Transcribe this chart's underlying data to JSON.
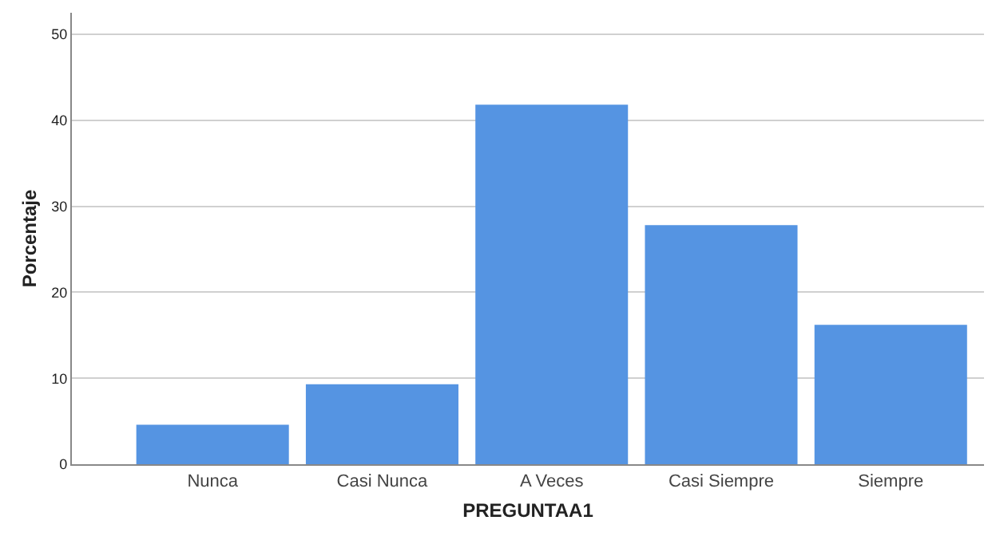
{
  "chart_data": {
    "type": "bar",
    "xlabel": "PREGUNTAA1",
    "ylabel": "Porcentaje",
    "categories": [
      "Nunca",
      "Casi Nunca",
      "A Veces",
      "Casi Siempre",
      "Siempre"
    ],
    "values": [
      4.6,
      9.3,
      41.8,
      27.8,
      16.2
    ],
    "color": "#5594e2",
    "ylim": [
      0,
      52.5
    ],
    "yticks": [
      0,
      10,
      20,
      30,
      40,
      50
    ],
    "grid": "y"
  }
}
